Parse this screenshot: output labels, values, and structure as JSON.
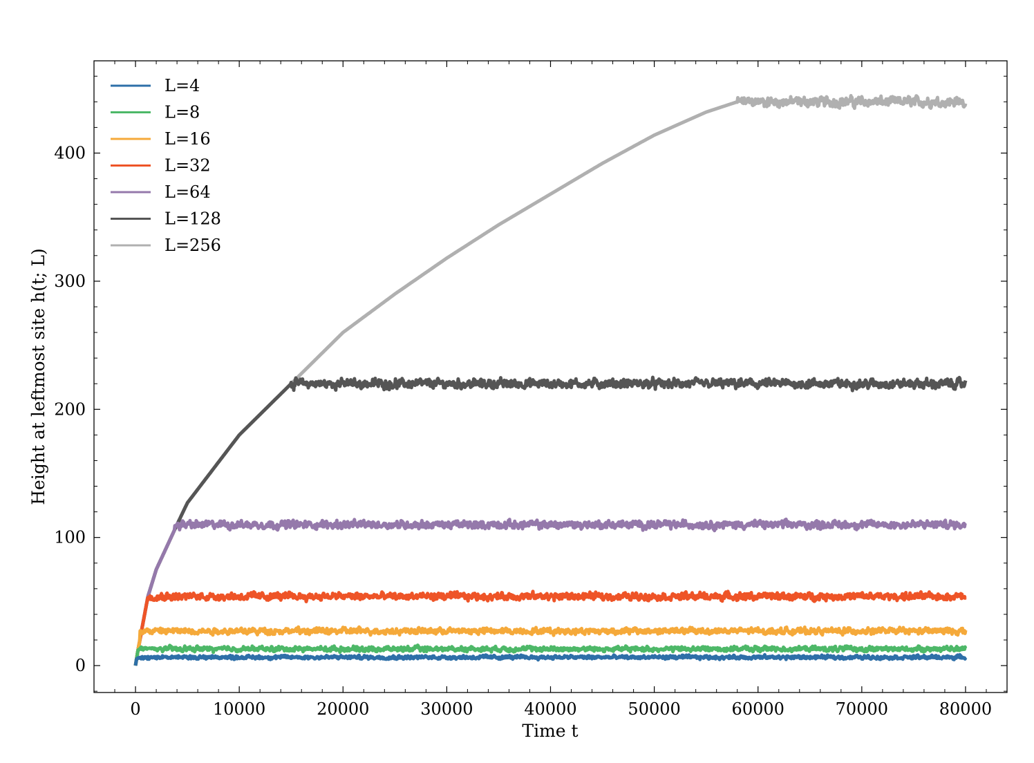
{
  "chart_data": {
    "type": "line",
    "xlabel": "Time t",
    "ylabel": "Height at leftmost site h(t; L)",
    "xlim": [
      -4000,
      84000
    ],
    "ylim": [
      -21,
      472
    ],
    "xticks": [
      0,
      10000,
      20000,
      30000,
      40000,
      50000,
      60000,
      70000,
      80000
    ],
    "yticks": [
      0,
      100,
      200,
      300,
      400
    ],
    "legend_position": "top-left",
    "grid": false,
    "series": [
      {
        "name": "L=4",
        "color": "#2e6fa8",
        "saturation_height": 6.5,
        "crossover_time": 70,
        "noise": 1.2
      },
      {
        "name": "L=8",
        "color": "#4db868",
        "saturation_height": 13,
        "crossover_time": 260,
        "noise": 1.6
      },
      {
        "name": "L=16",
        "color": "#f5a93a",
        "saturation_height": 27,
        "crossover_time": 450,
        "noise": 2.0
      },
      {
        "name": "L=32",
        "color": "#ee5427",
        "saturation_height": 54,
        "crossover_time": 1200,
        "noise": 2.4
      },
      {
        "name": "L=64",
        "color": "#9579ab",
        "saturation_height": 110,
        "crossover_time": 3800,
        "noise": 2.6
      },
      {
        "name": "L=128",
        "color": "#555555",
        "saturation_height": 220,
        "crossover_time": 15000,
        "noise": 3.0
      },
      {
        "name": "L=256",
        "color": "#b0b0b0",
        "saturation_height": 440,
        "crossover_time": 58000,
        "noise": 3.3
      }
    ],
    "growth_law": {
      "description": "shared initial growth curve",
      "points": [
        [
          0,
          0
        ],
        [
          200,
          10
        ],
        [
          600,
          28
        ],
        [
          1200,
          54
        ],
        [
          2000,
          75
        ],
        [
          4000,
          110
        ],
        [
          5000,
          127
        ],
        [
          10000,
          180
        ],
        [
          15000,
          220
        ],
        [
          20000,
          260
        ],
        [
          25000,
          290
        ],
        [
          30000,
          318
        ],
        [
          35000,
          344
        ],
        [
          40000,
          368
        ],
        [
          45000,
          392
        ],
        [
          50000,
          414
        ],
        [
          55000,
          432
        ],
        [
          58000,
          440
        ]
      ]
    }
  }
}
